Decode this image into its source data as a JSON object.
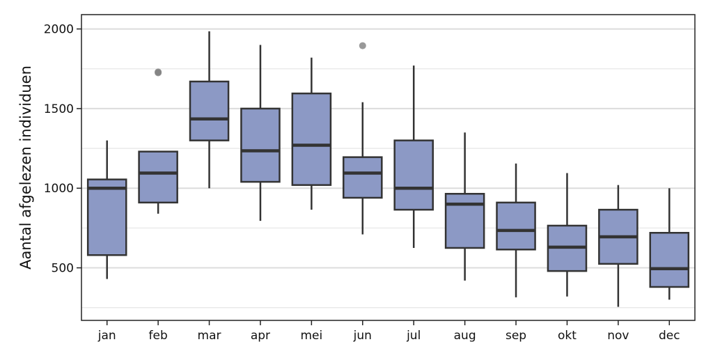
{
  "chart_data": {
    "type": "box",
    "title": "",
    "xlabel": "",
    "ylabel": "Aantal afgelezen individuen",
    "ylim": [
      170,
      2090
    ],
    "yticks": [
      500,
      1000,
      1500,
      2000
    ],
    "grid": true,
    "box_color": "#8c99c5",
    "outline_color": "#333333",
    "outlier_color": "#7f7f7f",
    "categories": [
      "jan",
      "feb",
      "mar",
      "apr",
      "mei",
      "jun",
      "jul",
      "aug",
      "sep",
      "okt",
      "nov",
      "dec"
    ],
    "boxes": [
      {
        "min": 430,
        "q1": 580,
        "median": 1000,
        "q3": 1055,
        "max": 1300,
        "outliers": []
      },
      {
        "min": 840,
        "q1": 910,
        "median": 1095,
        "q3": 1230,
        "max": 1230,
        "outliers": [
          1725,
          1730
        ]
      },
      {
        "min": 1000,
        "q1": 1300,
        "median": 1435,
        "q3": 1670,
        "max": 1985,
        "outliers": []
      },
      {
        "min": 795,
        "q1": 1040,
        "median": 1235,
        "q3": 1500,
        "max": 1900,
        "outliers": []
      },
      {
        "min": 865,
        "q1": 1020,
        "median": 1270,
        "q3": 1595,
        "max": 1820,
        "outliers": []
      },
      {
        "min": 710,
        "q1": 940,
        "median": 1095,
        "q3": 1195,
        "max": 1540,
        "outliers": [
          1895
        ]
      },
      {
        "min": 625,
        "q1": 865,
        "median": 1000,
        "q3": 1300,
        "max": 1770,
        "outliers": []
      },
      {
        "min": 420,
        "q1": 625,
        "median": 900,
        "q3": 965,
        "max": 1350,
        "outliers": []
      },
      {
        "min": 315,
        "q1": 615,
        "median": 735,
        "q3": 910,
        "max": 1155,
        "outliers": []
      },
      {
        "min": 320,
        "q1": 480,
        "median": 630,
        "q3": 765,
        "max": 1095,
        "outliers": []
      },
      {
        "min": 255,
        "q1": 525,
        "median": 695,
        "q3": 865,
        "max": 1020,
        "outliers": []
      },
      {
        "min": 300,
        "q1": 380,
        "median": 495,
        "q3": 720,
        "max": 1000,
        "outliers": []
      }
    ]
  }
}
